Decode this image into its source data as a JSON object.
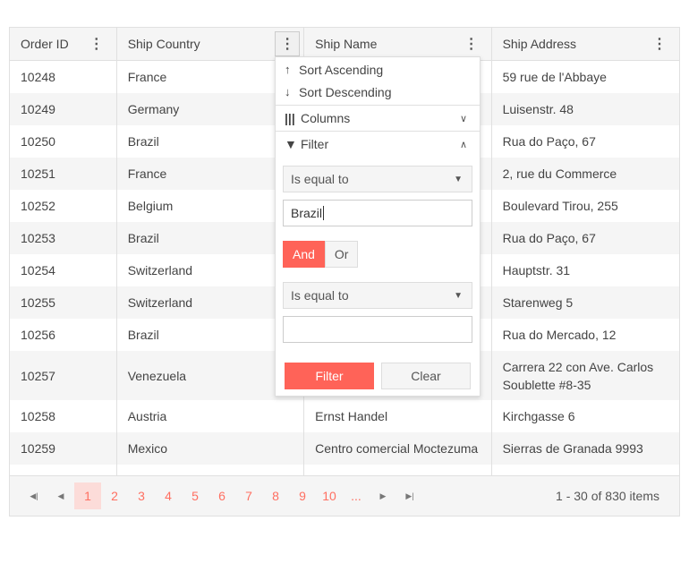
{
  "columns": [
    "Order ID",
    "Ship Country",
    "Ship Name",
    "Ship Address"
  ],
  "rows": [
    [
      "10248",
      "France",
      "",
      "59 rue de l'Abbaye"
    ],
    [
      "10249",
      "Germany",
      "",
      "Luisenstr. 48"
    ],
    [
      "10250",
      "Brazil",
      "",
      "Rua do Paço, 67"
    ],
    [
      "10251",
      "France",
      "",
      "2, rue du Commerce"
    ],
    [
      "10252",
      "Belgium",
      "",
      "Boulevard Tirou, 255"
    ],
    [
      "10253",
      "Brazil",
      "",
      "Rua do Paço, 67"
    ],
    [
      "10254",
      "Switzerland",
      "",
      "Hauptstr. 31"
    ],
    [
      "10255",
      "Switzerland",
      "",
      "Starenweg 5"
    ],
    [
      "10256",
      "Brazil",
      "",
      "Rua do Mercado, 12"
    ],
    [
      "10257",
      "Venezuela",
      "",
      "Carrera 22 con Ave. Carlos Soublette #8-35"
    ],
    [
      "10258",
      "Austria",
      "Ernst Handel",
      "Kirchgasse 6"
    ],
    [
      "10259",
      "Mexico",
      "Centro comercial Moctezuma",
      "Sierras de Granada 9993"
    ]
  ],
  "menu": {
    "sort_asc": "Sort Ascending",
    "sort_desc": "Sort Descending",
    "columns": "Columns",
    "filter": "Filter",
    "operator1": "Is equal to",
    "value1": "Brazil",
    "and": "And",
    "or": "Or",
    "operator2": "Is equal to",
    "value2": "",
    "filter_button": "Filter",
    "clear_button": "Clear"
  },
  "pager": {
    "pages": [
      "1",
      "2",
      "3",
      "4",
      "5",
      "6",
      "7",
      "8",
      "9",
      "10",
      "..."
    ],
    "current": "1",
    "info": "1 - 30 of 830 items"
  },
  "colors": {
    "accent": "#ff6358",
    "current_page_bg": "#fcdcd9"
  }
}
